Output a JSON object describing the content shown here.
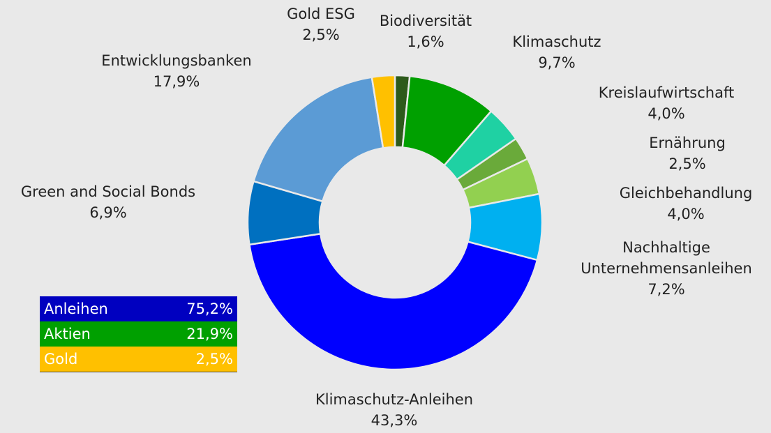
{
  "chart_data": {
    "type": "donut",
    "categories": [
      "Biodiversität",
      "Klimaschutz",
      "Kreislaufwirtschaft",
      "Ernährung",
      "Gleichbehandlung",
      "Nachhaltige Unternehmensanleihen",
      "Klimaschutz-Anleihen",
      "Green and Social Bonds",
      "Entwicklungsbanken",
      "Gold ESG"
    ],
    "values": [
      1.6,
      9.7,
      4.0,
      2.5,
      4.0,
      7.2,
      43.3,
      6.9,
      17.9,
      2.5
    ],
    "value_labels": [
      "1,6%",
      "9,7%",
      "4,0%",
      "2,5%",
      "4,0%",
      "7,2%",
      "43,3%",
      "6,9%",
      "17,9%",
      "2,5%"
    ],
    "colors": [
      "#2d5a1b",
      "#00a000",
      "#1fd1a3",
      "#6aaa3a",
      "#92d050",
      "#00b0f0",
      "#0000ff",
      "#0070c0",
      "#5b9bd5",
      "#ffc000"
    ]
  },
  "summary": {
    "rows": [
      {
        "label": "Anleihen",
        "value": "75,2%",
        "color": "#0000c0"
      },
      {
        "label": "Aktien",
        "value": "21,9%",
        "color": "#00a000"
      },
      {
        "label": "Gold",
        "value": "2,5%",
        "color": "#ffc000"
      }
    ]
  }
}
